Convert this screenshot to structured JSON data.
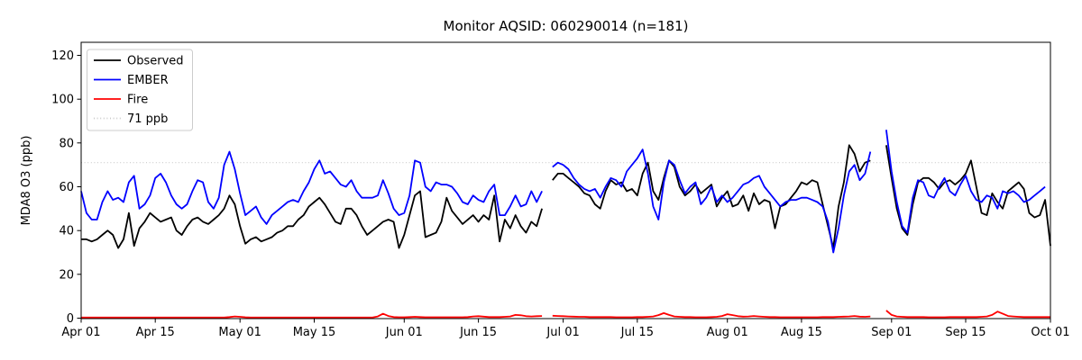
{
  "chart_data": {
    "type": "line",
    "title": "Monitor AQSID: 060290014 (n=181)",
    "ylabel": "MDA8 O3 (ppb)",
    "xlabel": "",
    "ylim": [
      0,
      126
    ],
    "yticks": [
      0,
      20,
      40,
      60,
      80,
      100,
      120
    ],
    "grid": false,
    "x_unit": "days since Apr 01",
    "xlim": [
      0,
      183
    ],
    "xticks": {
      "positions": [
        0,
        14,
        30,
        44,
        61,
        75,
        91,
        105,
        122,
        136,
        153,
        167,
        183
      ],
      "labels": [
        "Apr 01",
        "Apr 15",
        "May 01",
        "May 15",
        "Jun 01",
        "Jun 15",
        "Jul 01",
        "Jul 15",
        "Aug 01",
        "Aug 15",
        "Sep 01",
        "Sep 15",
        "Oct 01"
      ]
    },
    "threshold": {
      "value": 71,
      "label": "71 ppb",
      "color": "#c9c9c9",
      "style": "dotted"
    },
    "legend": {
      "position": "upper-left",
      "entries": [
        "Observed",
        "EMBER",
        "Fire",
        "71 ppb"
      ]
    },
    "series": [
      {
        "name": "Observed",
        "color": "#000000",
        "values": [
          36,
          36,
          35,
          36,
          38,
          40,
          38,
          32,
          36,
          48,
          33,
          41,
          44,
          48,
          46,
          44,
          45,
          46,
          40,
          38,
          42,
          45,
          46,
          44,
          43,
          45,
          47,
          50,
          56,
          52,
          42,
          34,
          36,
          37,
          35,
          36,
          37,
          39,
          40,
          42,
          42,
          45,
          47,
          51,
          53,
          55,
          52,
          48,
          44,
          43,
          50,
          50,
          47,
          42,
          38,
          40,
          42,
          44,
          45,
          44,
          32,
          38,
          47,
          56,
          58,
          37,
          38,
          39,
          44,
          55,
          49,
          46,
          43,
          45,
          47,
          44,
          47,
          45,
          56,
          35,
          45,
          41,
          47,
          42,
          39,
          44,
          42,
          50,
          null,
          63,
          66,
          66,
          64,
          62,
          60,
          57,
          56,
          52,
          50,
          58,
          63,
          61,
          62,
          58,
          59,
          56,
          66,
          71,
          58,
          54,
          64,
          72,
          69,
          60,
          56,
          58,
          61,
          57,
          59,
          61,
          51,
          55,
          58,
          51,
          52,
          56,
          49,
          57,
          52,
          54,
          53,
          41,
          51,
          52,
          55,
          58,
          62,
          61,
          63,
          62,
          52,
          42,
          32,
          51,
          62,
          79,
          75,
          67,
          71,
          72,
          null,
          null,
          79,
          64,
          50,
          41,
          38,
          52,
          62,
          64,
          64,
          62,
          59,
          62,
          63,
          61,
          63,
          66,
          72,
          60,
          48,
          47,
          57,
          53,
          50,
          58,
          60,
          62,
          59,
          48,
          46,
          47,
          54,
          33
        ]
      },
      {
        "name": "EMBER",
        "color": "#0000ff",
        "values": [
          58,
          48,
          45,
          45,
          53,
          58,
          54,
          55,
          53,
          62,
          65,
          50,
          52,
          56,
          64,
          66,
          62,
          56,
          52,
          50,
          52,
          58,
          63,
          62,
          53,
          50,
          55,
          70,
          76,
          68,
          57,
          47,
          49,
          51,
          46,
          43,
          47,
          49,
          51,
          53,
          54,
          53,
          58,
          62,
          68,
          72,
          66,
          67,
          64,
          61,
          60,
          63,
          58,
          55,
          55,
          55,
          56,
          63,
          57,
          50,
          47,
          48,
          56,
          72,
          71,
          60,
          58,
          62,
          61,
          61,
          60,
          57,
          53,
          52,
          56,
          54,
          53,
          58,
          61,
          47,
          47,
          51,
          56,
          51,
          52,
          58,
          53,
          58,
          null,
          69,
          71,
          70,
          68,
          64,
          61,
          59,
          58,
          59,
          55,
          60,
          64,
          63,
          60,
          67,
          70,
          73,
          77,
          66,
          51,
          45,
          62,
          72,
          70,
          63,
          57,
          60,
          62,
          52,
          55,
          60,
          53,
          56,
          53,
          55,
          58,
          61,
          62,
          64,
          65,
          60,
          57,
          54,
          51,
          53,
          54,
          54,
          55,
          55,
          54,
          53,
          51,
          44,
          30,
          41,
          56,
          67,
          70,
          63,
          66,
          76,
          null,
          null,
          86,
          67,
          53,
          42,
          39,
          55,
          63,
          62,
          56,
          55,
          60,
          64,
          58,
          56,
          61,
          65,
          58,
          54,
          53,
          56,
          55,
          50,
          58,
          57,
          58,
          56,
          53,
          54,
          56,
          58,
          60,
          null
        ]
      },
      {
        "name": "Fire",
        "color": "#ff0000",
        "values": [
          0.3,
          0.3,
          0.3,
          0.3,
          0.3,
          0.3,
          0.3,
          0.3,
          0.3,
          0.3,
          0.3,
          0.3,
          0.3,
          0.3,
          0.3,
          0.3,
          0.3,
          0.3,
          0.3,
          0.3,
          0.3,
          0.3,
          0.3,
          0.3,
          0.3,
          0.3,
          0.3,
          0.3,
          0.5,
          0.8,
          0.6,
          0.4,
          0.3,
          0.3,
          0.3,
          0.3,
          0.3,
          0.3,
          0.3,
          0.3,
          0.3,
          0.3,
          0.3,
          0.3,
          0.3,
          0.3,
          0.3,
          0.3,
          0.3,
          0.3,
          0.3,
          0.3,
          0.3,
          0.3,
          0.3,
          0.3,
          0.8,
          2.0,
          1.0,
          0.5,
          0.4,
          0.4,
          0.5,
          0.6,
          0.5,
          0.4,
          0.4,
          0.4,
          0.4,
          0.4,
          0.4,
          0.4,
          0.4,
          0.5,
          0.8,
          0.9,
          0.7,
          0.5,
          0.5,
          0.5,
          0.6,
          0.8,
          1.5,
          1.3,
          0.9,
          0.8,
          0.9,
          1.0,
          null,
          1.1,
          1.0,
          0.9,
          0.8,
          0.7,
          0.6,
          0.6,
          0.5,
          0.5,
          0.5,
          0.5,
          0.5,
          0.4,
          0.4,
          0.4,
          0.4,
          0.5,
          0.5,
          0.6,
          0.8,
          1.4,
          2.3,
          1.5,
          0.8,
          0.6,
          0.5,
          0.5,
          0.4,
          0.4,
          0.4,
          0.5,
          0.6,
          1.0,
          1.8,
          1.4,
          0.9,
          0.7,
          0.8,
          1.0,
          0.8,
          0.6,
          0.5,
          0.5,
          0.4,
          0.4,
          0.4,
          0.4,
          0.4,
          0.4,
          0.4,
          0.4,
          0.5,
          0.5,
          0.5,
          0.6,
          0.7,
          0.8,
          1.0,
          0.7,
          0.6,
          0.8,
          null,
          null,
          3.5,
          1.5,
          0.8,
          0.6,
          0.5,
          0.5,
          0.5,
          0.5,
          0.4,
          0.4,
          0.4,
          0.4,
          0.5,
          0.5,
          0.5,
          0.5,
          0.5,
          0.5,
          0.6,
          0.8,
          1.5,
          3.0,
          2.0,
          1.0,
          0.8,
          0.6,
          0.5,
          0.5,
          0.5,
          0.5,
          0.5,
          0.5
        ]
      }
    ]
  }
}
